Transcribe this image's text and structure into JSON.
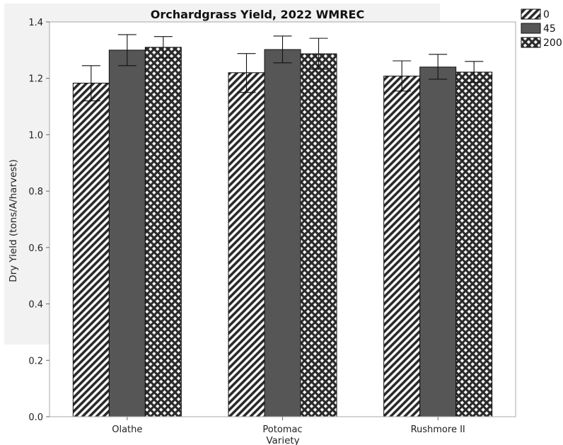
{
  "chart_data": {
    "type": "bar",
    "title": "Orchardgrass Yield, 2022 WMREC",
    "xlabel": "Variety",
    "ylabel": "Dry Yield (tons/A/harvest)",
    "ylim": [
      0,
      1.4
    ],
    "yticks": [
      "0.0",
      "0.2",
      "0.4",
      "0.6",
      "0.8",
      "1.0",
      "1.2",
      "1.4"
    ],
    "categories": [
      "Olathe",
      "Potomac",
      "Rushmore II"
    ],
    "series": [
      {
        "name": "0",
        "pattern": "diagonal",
        "values": [
          1.183,
          1.22,
          1.208
        ],
        "error_low": [
          1.12,
          1.15,
          1.155
        ],
        "error_high": [
          1.245,
          1.288,
          1.262
        ]
      },
      {
        "name": "45",
        "pattern": "solid",
        "values": [
          1.3,
          1.302,
          1.24
        ],
        "error_low": [
          1.245,
          1.255,
          1.197
        ],
        "error_high": [
          1.355,
          1.35,
          1.285
        ]
      },
      {
        "name": "200",
        "pattern": "crosshatch",
        "values": [
          1.31,
          1.287,
          1.222
        ],
        "error_low": [
          1.272,
          1.232,
          1.185
        ],
        "error_high": [
          1.348,
          1.342,
          1.26
        ]
      }
    ],
    "grid": false,
    "legend_position": "top-right"
  },
  "colors": {
    "solid_bar": "#565656",
    "pattern_ink": "#2a2a2a",
    "frame": "#a8a8a8",
    "title_band": "#f2f2f2"
  }
}
